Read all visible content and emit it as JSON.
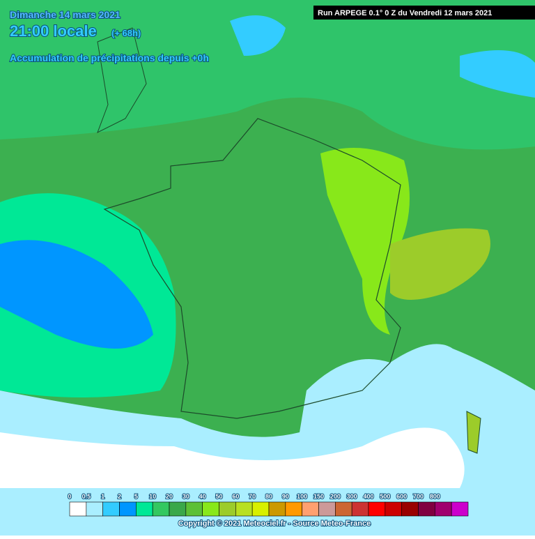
{
  "header": {
    "date": "Dimanche 14 mars 2021",
    "time": "21:00 locale",
    "lead": "(+ 68h)",
    "subtitle": "Accumulation de précipitations depuis +0h",
    "run": "Run ARPEGE 0.1° 0 Z du Vendredi 12 mars 2021"
  },
  "legend": {
    "ticks": [
      0,
      0.5,
      1,
      2,
      5,
      10,
      20,
      30,
      40,
      50,
      60,
      70,
      80,
      90,
      100,
      150,
      200,
      300,
      400,
      500,
      600,
      700,
      800
    ],
    "colors": [
      "#ffffff",
      "#aaeeff",
      "#33ccff",
      "#0096ff",
      "#00e896",
      "#33c860",
      "#3aa84a",
      "#5cc036",
      "#88e81a",
      "#9ccc2a",
      "#b8e020",
      "#d8f000",
      "#cc9900",
      "#ff9900",
      "#ffa070",
      "#cc9999",
      "#cc6633",
      "#cc3333",
      "#ff0000",
      "#cc0000",
      "#990000",
      "#800040",
      "#a0006e",
      "#cc00cc"
    ]
  },
  "footer": {
    "copyright": "Copyright © 2021 Meteociel.fr - Source Meteo-France"
  }
}
